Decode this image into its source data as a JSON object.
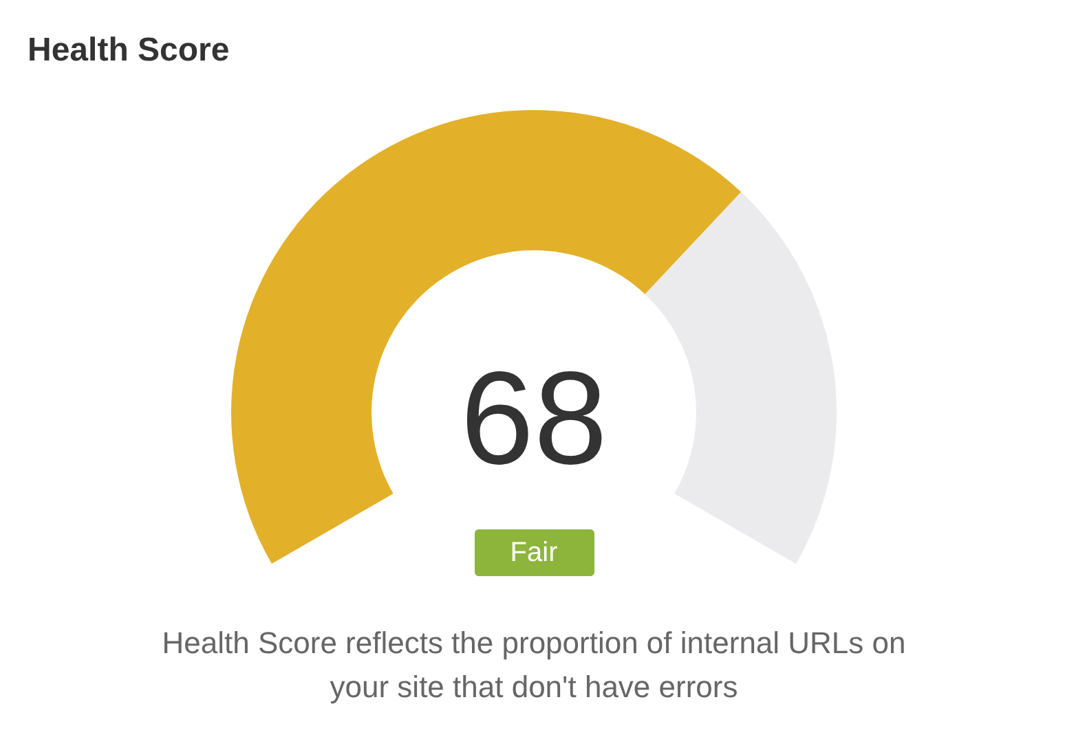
{
  "chart_data": {
    "type": "donut",
    "title": "Health Score",
    "categories": [
      null,
      null
    ],
    "values": [
      68,
      32
    ],
    "colors": [
      "#e3b02a",
      "#ebebed"
    ],
    "annotations": [
      "68",
      "Fair",
      "Health Score reflects the proportion of internal URLs on your site that don't have errors"
    ]
  }
}
